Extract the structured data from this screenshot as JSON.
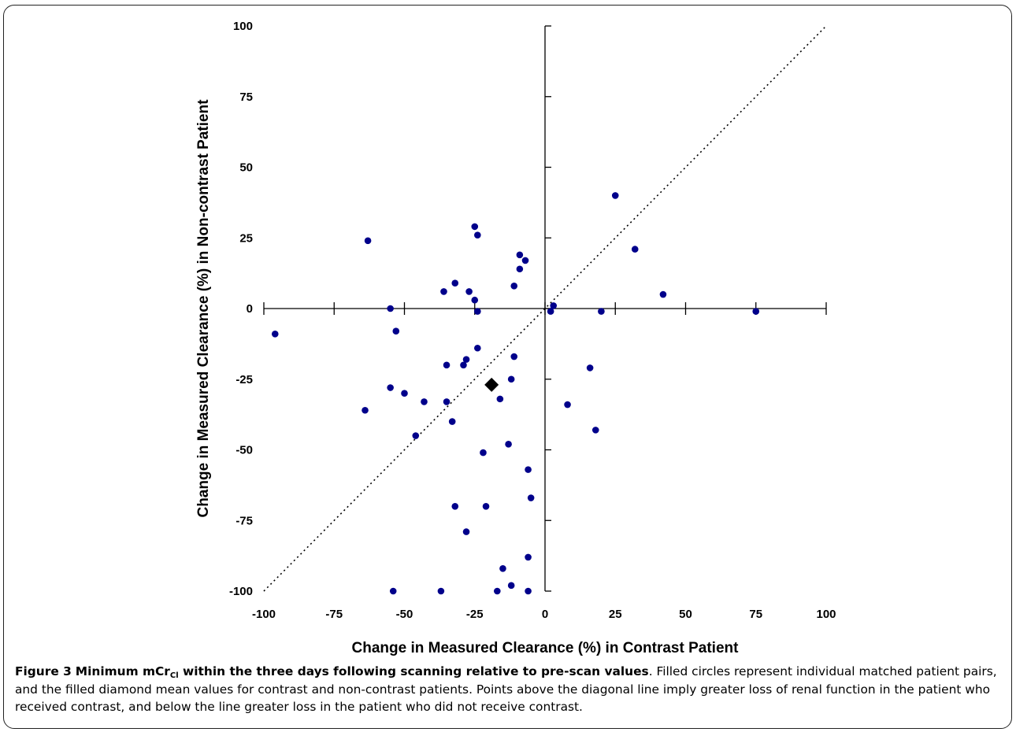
{
  "chart_data": {
    "type": "scatter",
    "xlabel": "Change in Measured Clearance (%) in Contrast Patient",
    "ylabel": "Change in Measured Clearance (%) in Non-contrast Patient",
    "xlim": [
      -100,
      100
    ],
    "ylim": [
      -100,
      100
    ],
    "xticks": [
      -100,
      -75,
      -50,
      -25,
      0,
      25,
      50,
      75,
      100
    ],
    "yticks": [
      100,
      75,
      50,
      25,
      0,
      -25,
      -50,
      -75,
      -100
    ],
    "axes_cross_at": [
      0,
      0
    ],
    "grid": false,
    "reference_line": {
      "style": "dotted",
      "from": [
        -100,
        -100
      ],
      "to": [
        100,
        100
      ]
    },
    "series": [
      {
        "marker": "circle",
        "color": "#00008b",
        "points": [
          [
            -63,
            24
          ],
          [
            -25,
            29
          ],
          [
            -24,
            26
          ],
          [
            -32,
            9
          ],
          [
            -36,
            6
          ],
          [
            -27,
            6
          ],
          [
            -25,
            3
          ],
          [
            -24,
            -1
          ],
          [
            -9,
            19
          ],
          [
            -7,
            17
          ],
          [
            -9,
            14
          ],
          [
            -11,
            8
          ],
          [
            2,
            -1
          ],
          [
            3,
            1
          ],
          [
            25,
            40
          ],
          [
            32,
            21
          ],
          [
            42,
            5
          ],
          [
            20,
            -1
          ],
          [
            75,
            -1
          ],
          [
            -55,
            0
          ],
          [
            -53,
            -8
          ],
          [
            -96,
            -9
          ],
          [
            -24,
            -14
          ],
          [
            -35,
            -20
          ],
          [
            -29,
            -20
          ],
          [
            -28,
            -18
          ],
          [
            -11,
            -17
          ],
          [
            16,
            -21
          ],
          [
            -55,
            -28
          ],
          [
            -50,
            -30
          ],
          [
            -43,
            -33
          ],
          [
            -35,
            -33
          ],
          [
            -12,
            -25
          ],
          [
            -16,
            -32
          ],
          [
            8,
            -34
          ],
          [
            -64,
            -36
          ],
          [
            -33,
            -40
          ],
          [
            18,
            -43
          ],
          [
            -46,
            -45
          ],
          [
            -13,
            -48
          ],
          [
            -22,
            -51
          ],
          [
            -6,
            -57
          ],
          [
            -5,
            -67
          ],
          [
            -32,
            -70
          ],
          [
            -21,
            -70
          ],
          [
            -28,
            -79
          ],
          [
            -6,
            -88
          ],
          [
            -15,
            -92
          ],
          [
            -12,
            -98
          ],
          [
            -54,
            -100
          ],
          [
            -37,
            -100
          ],
          [
            -17,
            -100
          ],
          [
            -6,
            -100
          ]
        ]
      },
      {
        "marker": "diamond",
        "color": "#000000",
        "points": [
          [
            -19,
            -27
          ]
        ]
      }
    ]
  },
  "caption": {
    "label": "Figure 3",
    "title_pre": "Minimum mCr",
    "title_sub": "Cl",
    "title_post": " within the three days following scanning relative to pre-scan values",
    "body": ". Filled circles represent individual matched patient pairs, and the filled diamond mean values for contrast and non-contrast patients. Points above the diagonal line imply greater loss of renal function in the patient who received contrast, and below the line greater loss in the patient who did not receive contrast."
  }
}
